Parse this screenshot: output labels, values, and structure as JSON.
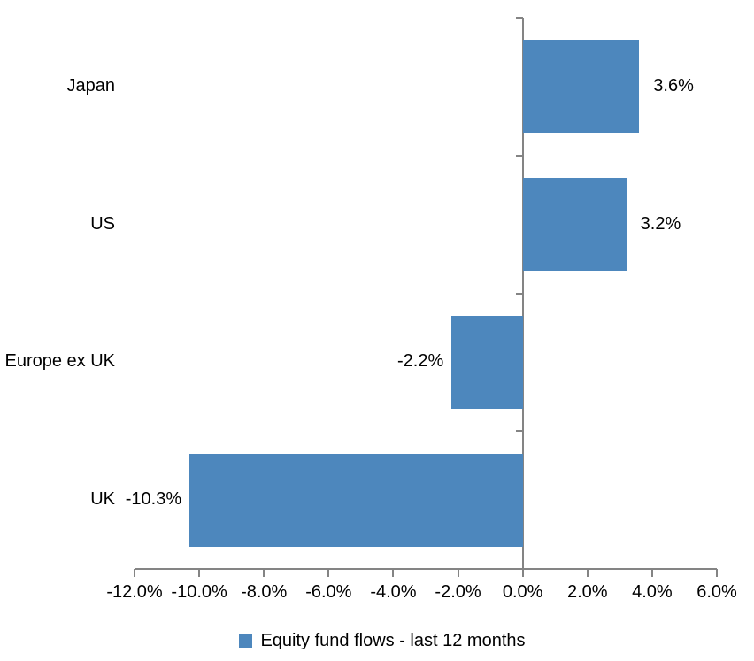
{
  "chart_data": {
    "type": "bar",
    "orientation": "horizontal",
    "title": "",
    "categories": [
      "Japan",
      "US",
      "Europe ex UK",
      "UK"
    ],
    "series": [
      {
        "name": "Equity fund flows - last 12 months",
        "values": [
          3.6,
          3.2,
          -2.2,
          -10.3
        ]
      }
    ],
    "values": [
      3.6,
      3.2,
      -2.2,
      -10.3
    ],
    "data_labels": [
      "3.6%",
      "3.2%",
      "-2.2%",
      "-10.3%"
    ],
    "xlabel": "",
    "ylabel": "",
    "xlim": [
      -12,
      6
    ],
    "x_tick_step": 2,
    "x_ticks": [
      -12,
      -10,
      -8,
      -6,
      -4,
      -2,
      0,
      2,
      4,
      6
    ],
    "x_tick_labels": [
      "-12.0%",
      "-10.0%",
      "-8.0%",
      "-6.0%",
      "-4.0%",
      "-2.0%",
      "0.0%",
      "2.0%",
      "4.0%",
      "6.0%"
    ],
    "grid": false,
    "bar_color": "#4D87BD",
    "axis_color": "#848484",
    "text_color": "#000000",
    "legend": {
      "position": "bottom",
      "label": "Equity fund flows - last 12 months",
      "swatch_color": "#4D87BD"
    }
  }
}
